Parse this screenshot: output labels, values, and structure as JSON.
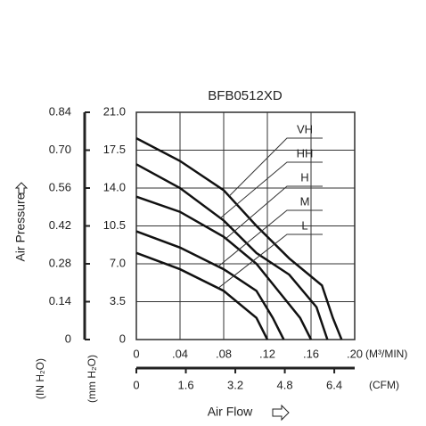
{
  "chart_data": {
    "type": "line",
    "title": "BFB0512XD",
    "x_label": "Air Flow",
    "y_label": "Air Pressure",
    "y_unit_label": "(mm H₂O)",
    "y2_unit_label": "(IN H₂O)",
    "x_unit_label": "(M³/MIN)",
    "x2_unit_label": "(CFM)",
    "xlim": [
      0,
      0.2
    ],
    "xticks": [
      0,
      {
        "value": 0.04,
        "label": ".04"
      },
      {
        "value": 0.08,
        "label": ".08"
      },
      {
        "value": 0.12,
        "label": ".12"
      },
      {
        "value": 0.16,
        "label": ".16"
      },
      {
        "value": 0.2,
        "label": ".20"
      }
    ],
    "x2lim": [
      0,
      7.06
    ],
    "x2ticks": [
      0,
      1.6,
      3.2,
      4.8,
      6.4
    ],
    "ylim": [
      0,
      21
    ],
    "yticks": [
      0,
      3.5,
      {
        "value": 7,
        "label": "7.0"
      },
      10.5,
      {
        "value": 14,
        "label": "14.0"
      },
      17.5,
      {
        "value": 21,
        "label": "21.0"
      }
    ],
    "y2lim": [
      0,
      0.84
    ],
    "y2ticks": [
      0,
      0.14,
      0.28,
      0.42,
      0.56,
      {
        "value": 0.7,
        "label": "0.70"
      },
      0.84
    ],
    "grid": true,
    "x": [
      0,
      0.04,
      0.08,
      0.11,
      0.14,
      0.17,
      0.18,
      0.188
    ],
    "series": [
      {
        "name": "VH",
        "color": "#111",
        "x": [
          0,
          0.04,
          0.08,
          0.11,
          0.14,
          0.17,
          0.18,
          0.188
        ],
        "values": [
          18.6,
          16.5,
          13.8,
          10.5,
          7.5,
          5,
          2,
          0
        ]
      },
      {
        "name": "HH",
        "color": "#111",
        "x": [
          0,
          0.04,
          0.08,
          0.11,
          0.14,
          0.165,
          0.175
        ],
        "values": [
          16.2,
          14,
          11,
          8,
          6,
          3,
          0
        ]
      },
      {
        "name": "H",
        "color": "#111",
        "x": [
          0,
          0.04,
          0.08,
          0.11,
          0.13,
          0.15,
          0.16
        ],
        "values": [
          13.2,
          11.8,
          9.5,
          7,
          4.5,
          2,
          0
        ]
      },
      {
        "name": "M",
        "color": "#111",
        "x": [
          0,
          0.04,
          0.08,
          0.11,
          0.125,
          0.135
        ],
        "values": [
          10,
          8.5,
          6.5,
          4.5,
          2,
          0
        ]
      },
      {
        "name": "L",
        "color": "#111",
        "x": [
          0,
          0.04,
          0.08,
          0.11,
          0.12
        ],
        "values": [
          8,
          6.5,
          4.5,
          2,
          0
        ]
      }
    ]
  }
}
